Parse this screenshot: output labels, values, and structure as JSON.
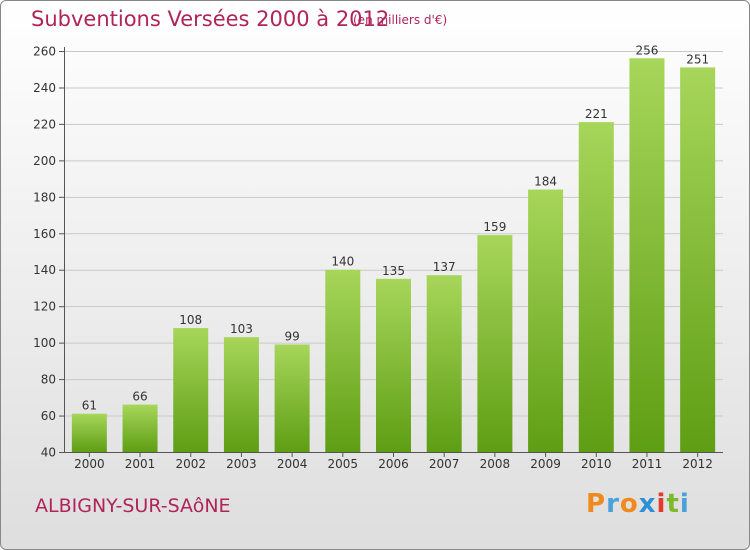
{
  "header": {
    "title": "Subventions Versées 2000 à 2012",
    "subtitle": "(en milliers d'€)"
  },
  "footer": {
    "town": "ALBIGNY-SUR-SAôNE",
    "logo_letters": [
      "P",
      "r",
      "o",
      "x",
      "i",
      "t",
      "i"
    ],
    "logo_colors": [
      "#f08a1c",
      "#4aa0d8",
      "#f08a1c",
      "#2d8fd5",
      "#e23a2b",
      "#7cba2a",
      "#4aa0d8"
    ]
  },
  "colors": {
    "bar_top": "#a7d65a",
    "bar_bottom": "#5e9e14",
    "text": "#b0245a",
    "grid": "#c9c9c9"
  },
  "chart_data": {
    "type": "bar",
    "categories": [
      "2000",
      "2001",
      "2002",
      "2003",
      "2004",
      "2005",
      "2006",
      "2007",
      "2008",
      "2009",
      "2010",
      "2011",
      "2012"
    ],
    "values": [
      61,
      66,
      108,
      103,
      99,
      140,
      135,
      137,
      159,
      184,
      221,
      256,
      251
    ],
    "ylim": [
      40,
      260
    ],
    "yticks": [
      40,
      60,
      80,
      100,
      120,
      140,
      160,
      180,
      200,
      220,
      240,
      260
    ],
    "grid": true,
    "legend": "none"
  }
}
